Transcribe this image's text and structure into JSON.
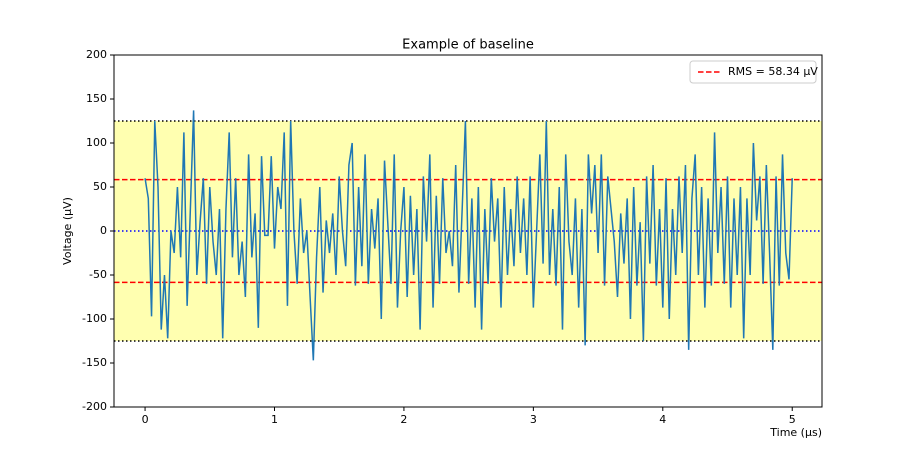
{
  "chart_data": {
    "type": "line",
    "title": "Example of baseline",
    "x_label": "Time (μs)",
    "y_label": "Voltage (μV)",
    "xlim": [
      -0.24,
      5.23
    ],
    "ylim": [
      -200,
      200
    ],
    "xticks": [
      0,
      1,
      2,
      3,
      4,
      5
    ],
    "yticks": [
      -200,
      -150,
      -100,
      -50,
      0,
      50,
      100,
      150,
      200
    ],
    "band": {
      "range": [
        -125,
        125
      ],
      "color": "#ffffb0",
      "edge_color": "#000000"
    },
    "zero_line": {
      "value": 0,
      "color": "#0000ff"
    },
    "rms_lines": {
      "label": "RMS = 58.34 μV",
      "values": [
        58.34,
        -58.34
      ],
      "color": "#ff0000"
    },
    "legend": "upper right",
    "x": [
      0,
      0.025,
      0.05,
      0.075,
      0.1,
      0.125,
      0.15,
      0.175,
      0.2,
      0.225,
      0.25,
      0.275,
      0.3,
      0.325,
      0.35,
      0.375,
      0.4,
      0.425,
      0.45,
      0.475,
      0.5,
      0.525,
      0.55,
      0.575,
      0.6,
      0.625,
      0.65,
      0.675,
      0.7,
      0.725,
      0.75,
      0.775,
      0.8,
      0.825,
      0.85,
      0.875,
      0.9,
      0.925,
      0.95,
      0.975,
      1,
      1.025,
      1.05,
      1.075,
      1.1,
      1.125,
      1.15,
      1.175,
      1.2,
      1.225,
      1.25,
      1.275,
      1.3,
      1.325,
      1.35,
      1.375,
      1.4,
      1.425,
      1.45,
      1.475,
      1.5,
      1.525,
      1.55,
      1.575,
      1.6,
      1.625,
      1.65,
      1.675,
      1.7,
      1.725,
      1.75,
      1.775,
      1.8,
      1.825,
      1.85,
      1.875,
      1.9,
      1.925,
      1.95,
      1.975,
      2,
      2.025,
      2.05,
      2.075,
      2.1,
      2.125,
      2.15,
      2.175,
      2.2,
      2.225,
      2.25,
      2.275,
      2.3,
      2.325,
      2.35,
      2.375,
      2.4,
      2.425,
      2.45,
      2.475,
      2.5,
      2.525,
      2.55,
      2.575,
      2.6,
      2.625,
      2.65,
      2.675,
      2.7,
      2.725,
      2.75,
      2.775,
      2.8,
      2.825,
      2.85,
      2.875,
      2.9,
      2.925,
      2.95,
      2.975,
      3,
      3.025,
      3.05,
      3.075,
      3.1,
      3.125,
      3.15,
      3.175,
      3.2,
      3.225,
      3.25,
      3.275,
      3.3,
      3.325,
      3.35,
      3.375,
      3.4,
      3.425,
      3.45,
      3.475,
      3.5,
      3.525,
      3.55,
      3.575,
      3.6,
      3.625,
      3.65,
      3.675,
      3.7,
      3.725,
      3.75,
      3.775,
      3.8,
      3.825,
      3.85,
      3.875,
      3.9,
      3.925,
      3.95,
      3.975,
      4,
      4.025,
      4.05,
      4.075,
      4.1,
      4.125,
      4.15,
      4.175,
      4.2,
      4.225,
      4.25,
      4.275,
      4.3,
      4.325,
      4.35,
      4.375,
      4.4,
      4.425,
      4.45,
      4.475,
      4.5,
      4.525,
      4.55,
      4.575,
      4.6,
      4.625,
      4.65,
      4.675,
      4.7,
      4.725,
      4.75,
      4.775,
      4.8,
      4.825,
      4.85,
      4.875,
      4.9,
      4.925,
      4.95,
      4.975,
      5
    ],
    "series": [
      {
        "color": "#1f77b4",
        "values": [
          60,
          37,
          -97,
          125,
          50,
          -112,
          -50,
          -122,
          0,
          -25,
          50,
          -30,
          112,
          -85,
          25,
          137,
          -50,
          10,
          60,
          -60,
          50,
          -12,
          -50,
          25,
          -122,
          25,
          112,
          -30,
          60,
          -50,
          -12,
          -75,
          87,
          -30,
          20,
          -110,
          85,
          -5,
          -5,
          85,
          -20,
          50,
          25,
          112,
          -85,
          125,
          0,
          -60,
          37,
          -25,
          0,
          -75,
          -147,
          -30,
          50,
          -70,
          12,
          -25,
          20,
          -50,
          62,
          0,
          -40,
          75,
          100,
          -62,
          50,
          -40,
          87,
          -60,
          25,
          -20,
          37,
          -100,
          80,
          10,
          -60,
          87,
          -87,
          0,
          50,
          -75,
          40,
          -50,
          25,
          -112,
          62,
          -12,
          87,
          -87,
          40,
          -60,
          60,
          -25,
          0,
          -40,
          75,
          -70,
          25,
          125,
          -60,
          37,
          -87,
          50,
          -112,
          25,
          -60,
          60,
          -12,
          37,
          -87,
          50,
          -50,
          25,
          -40,
          62,
          -25,
          37,
          -50,
          62,
          -87,
          0,
          87,
          -37,
          125,
          -50,
          25,
          -62,
          50,
          -112,
          87,
          -12,
          -50,
          37,
          -87,
          25,
          -130,
          87,
          20,
          75,
          -25,
          87,
          -62,
          62,
          25,
          -12,
          -75,
          20,
          -37,
          37,
          -100,
          50,
          -62,
          10,
          -125,
          62,
          -37,
          75,
          -62,
          25,
          -87,
          60,
          -100,
          25,
          -50,
          62,
          -25,
          75,
          -135,
          37,
          87,
          -50,
          50,
          -87,
          37,
          -62,
          112,
          -25,
          50,
          -60,
          62,
          -87,
          37,
          -50,
          50,
          -122,
          37,
          -50,
          100,
          12,
          62,
          -60,
          75,
          -25,
          -135,
          62,
          -62,
          87,
          -25,
          -55,
          60
        ]
      }
    ]
  }
}
